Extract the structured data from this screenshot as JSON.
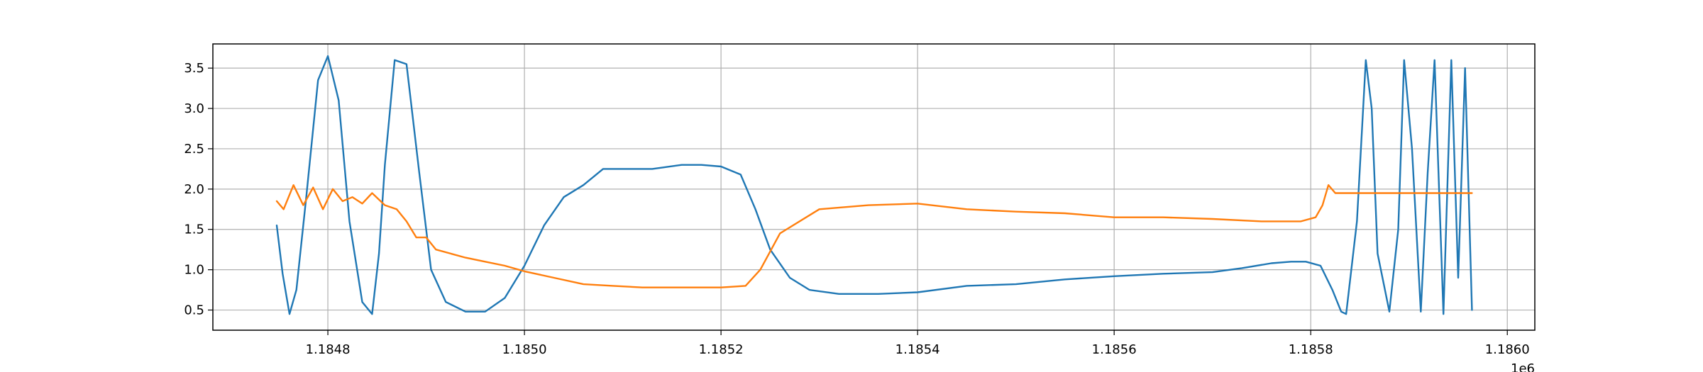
{
  "chart_data": {
    "type": "line",
    "title": "",
    "xlabel": "",
    "ylabel": "",
    "x_offset_label": "1e6",
    "xlim": [
      1184683,
      1186028
    ],
    "ylim": [
      0.25,
      3.8
    ],
    "grid": true,
    "legend": "none",
    "x_ticks": [
      1184800,
      1185000,
      1185200,
      1185400,
      1185600,
      1185800,
      1186000
    ],
    "x_tick_labels": [
      "1.1848",
      "1.1850",
      "1.1852",
      "1.1854",
      "1.1856",
      "1.1858",
      "1.1860"
    ],
    "y_ticks": [
      0.5,
      1.0,
      1.5,
      2.0,
      2.5,
      3.0,
      3.5
    ],
    "y_tick_labels": [
      "0.5",
      "1.0",
      "1.5",
      "2.0",
      "2.5",
      "3.0",
      "3.5"
    ],
    "series": [
      {
        "color": "#1f77b4",
        "x": [
          1184748,
          1184754,
          1184761,
          1184768,
          1184778,
          1184790,
          1184800,
          1184811,
          1184822,
          1184835,
          1184845,
          1184852,
          1184858,
          1184868,
          1184880,
          1184893,
          1184905,
          1184920,
          1184940,
          1184960,
          1184980,
          1185000,
          1185020,
          1185040,
          1185060,
          1185080,
          1185100,
          1185130,
          1185160,
          1185180,
          1185200,
          1185220,
          1185235,
          1185250,
          1185270,
          1185290,
          1185320,
          1185360,
          1185400,
          1185450,
          1185500,
          1185550,
          1185600,
          1185650,
          1185700,
          1185730,
          1185760,
          1185780,
          1185795,
          1185810,
          1185822,
          1185831,
          1185836,
          1185847,
          1185856,
          1185862,
          1185868,
          1185880,
          1185889,
          1185895,
          1185903,
          1185912,
          1185919,
          1185926,
          1185935,
          1185943,
          1185950,
          1185957,
          1185964
        ],
        "y": [
          1.55,
          0.95,
          0.45,
          0.75,
          1.9,
          3.35,
          3.65,
          3.1,
          1.6,
          0.6,
          0.45,
          1.2,
          2.3,
          3.6,
          3.55,
          2.2,
          1.0,
          0.6,
          0.48,
          0.48,
          0.65,
          1.05,
          1.55,
          1.9,
          2.05,
          2.25,
          2.25,
          2.25,
          2.3,
          2.3,
          2.28,
          2.18,
          1.75,
          1.25,
          0.9,
          0.75,
          0.7,
          0.7,
          0.72,
          0.8,
          0.82,
          0.88,
          0.92,
          0.95,
          0.97,
          1.02,
          1.08,
          1.1,
          1.1,
          1.05,
          0.75,
          0.48,
          0.45,
          1.6,
          3.6,
          3.0,
          1.2,
          0.48,
          1.5,
          3.6,
          2.5,
          0.48,
          2.2,
          3.6,
          0.45,
          3.6,
          0.9,
          3.5,
          0.5
        ]
      },
      {
        "color": "#ff7f0e",
        "x": [
          1184748,
          1184755,
          1184765,
          1184775,
          1184785,
          1184795,
          1184805,
          1184815,
          1184825,
          1184835,
          1184845,
          1184858,
          1184870,
          1184880,
          1184890,
          1184900,
          1184910,
          1184925,
          1184940,
          1184960,
          1184980,
          1185000,
          1185030,
          1185060,
          1185090,
          1185120,
          1185150,
          1185180,
          1185200,
          1185225,
          1185240,
          1185260,
          1185300,
          1185350,
          1185400,
          1185450,
          1185500,
          1185550,
          1185600,
          1185650,
          1185700,
          1185750,
          1185790,
          1185805,
          1185812,
          1185818,
          1185825,
          1185850,
          1185900,
          1185964
        ],
        "y": [
          1.85,
          1.75,
          2.05,
          1.8,
          2.02,
          1.75,
          2.0,
          1.85,
          1.9,
          1.82,
          1.95,
          1.8,
          1.75,
          1.6,
          1.4,
          1.4,
          1.25,
          1.2,
          1.15,
          1.1,
          1.05,
          0.98,
          0.9,
          0.82,
          0.8,
          0.78,
          0.78,
          0.78,
          0.78,
          0.8,
          1.0,
          1.45,
          1.75,
          1.8,
          1.82,
          1.75,
          1.72,
          1.7,
          1.65,
          1.65,
          1.63,
          1.6,
          1.6,
          1.65,
          1.8,
          2.05,
          1.95,
          1.95,
          1.95,
          1.95
        ]
      }
    ]
  }
}
